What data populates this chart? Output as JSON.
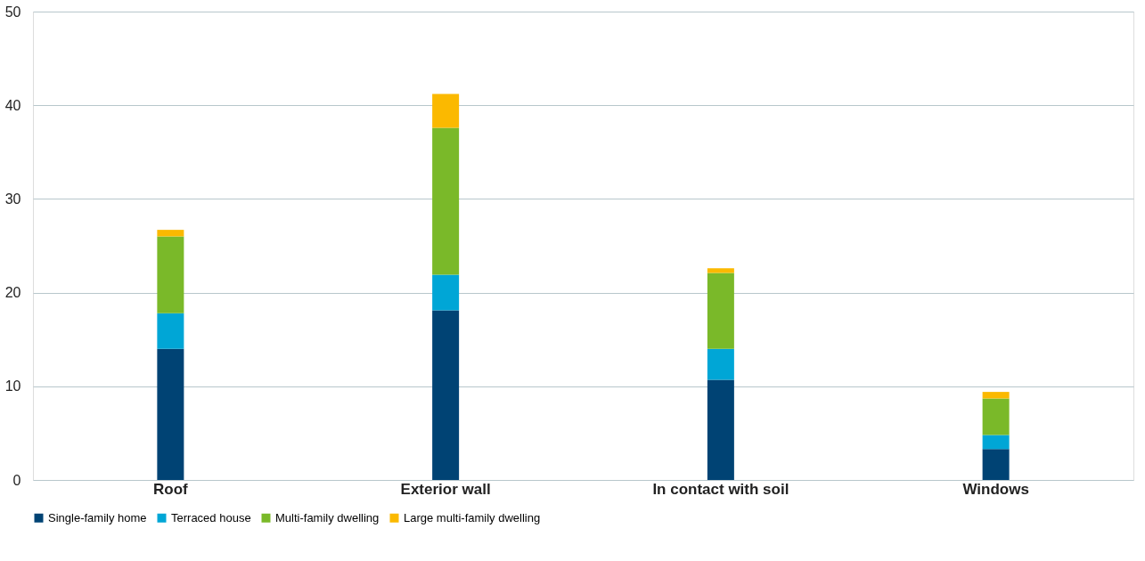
{
  "chart_data": {
    "type": "bar",
    "stacked": true,
    "categories": [
      "Roof",
      "Exterior wall",
      "In contact with soil",
      "Windows"
    ],
    "series": [
      {
        "name": "Single-family home",
        "color": "#004374",
        "values": [
          14.0,
          18.1,
          10.7,
          3.3
        ]
      },
      {
        "name": "Terraced house",
        "color": "#00a6d6",
        "values": [
          3.8,
          3.8,
          3.3,
          1.5
        ]
      },
      {
        "name": "Multi-family dwelling",
        "color": "#7ab929",
        "values": [
          8.2,
          15.7,
          8.1,
          3.9
        ]
      },
      {
        "name": "Large multi-family dwelling",
        "color": "#fbb900",
        "values": [
          0.7,
          3.6,
          0.5,
          0.7
        ]
      }
    ],
    "ylim": [
      0,
      50
    ],
    "yticks": [
      0,
      10,
      20,
      30,
      40,
      50
    ],
    "grid": "y",
    "legend": "bottom"
  }
}
